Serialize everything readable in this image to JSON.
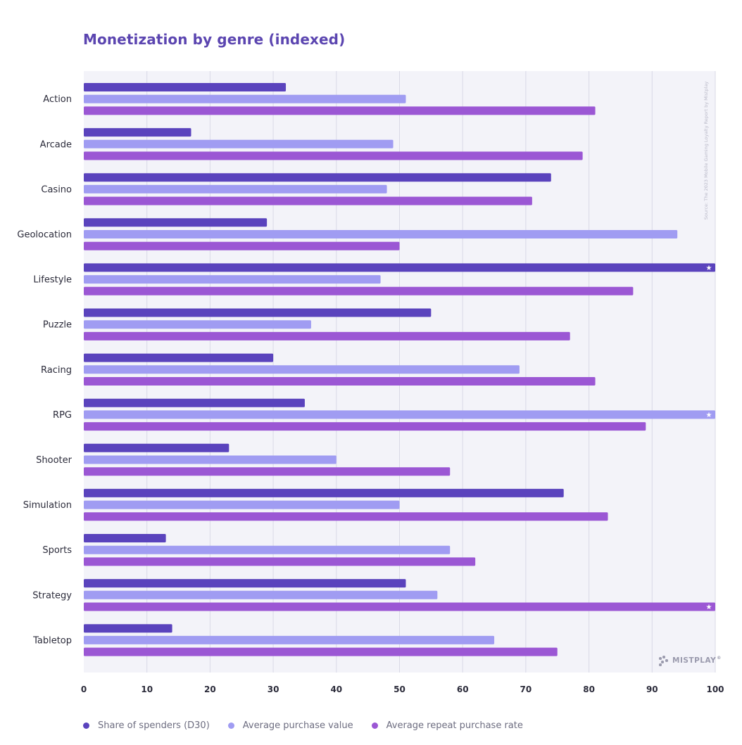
{
  "title": "Monetization by genre (indexed)",
  "source_note": "Source: The 2023 Mobile Gaming Loyalty Report by Mistplay",
  "brand": "MISTPLAY",
  "brand_mark": "®",
  "colors": {
    "share_of_spenders": "#5a43bd",
    "avg_purchase_value": "#a09cf2",
    "avg_repeat_rate": "#9b57d4",
    "plot_bg": "#f3f3f9",
    "grid": "#d9d9e6",
    "title": "#5b45b0"
  },
  "legend": [
    {
      "label": "Share of spenders (D30)",
      "color": "#5a43bd"
    },
    {
      "label": "Average purchase value",
      "color": "#a09cf2"
    },
    {
      "label": "Average repeat purchase rate",
      "color": "#9b57d4"
    }
  ],
  "chart_data": {
    "type": "bar",
    "orientation": "horizontal",
    "title": "Monetization by genre (indexed)",
    "xlabel": "",
    "ylabel": "",
    "xlim": [
      0,
      100
    ],
    "xticks": [
      0,
      10,
      20,
      30,
      40,
      50,
      60,
      70,
      80,
      90,
      100
    ],
    "grid": true,
    "legend_position": "bottom",
    "top_marker": "star",
    "categories": [
      "Action",
      "Arcade",
      "Casino",
      "Geolocation",
      "Lifestyle",
      "Puzzle",
      "Racing",
      "RPG",
      "Shooter",
      "Simulation",
      "Sports",
      "Strategy",
      "Tabletop"
    ],
    "series": [
      {
        "name": "Share of spenders (D30)",
        "values": [
          32,
          17,
          74,
          29,
          100,
          55,
          30,
          35,
          23,
          76,
          13,
          51,
          14
        ]
      },
      {
        "name": "Average purchase value",
        "values": [
          51,
          49,
          48,
          94,
          47,
          36,
          69,
          100,
          40,
          50,
          58,
          56,
          65
        ]
      },
      {
        "name": "Average repeat purchase rate",
        "values": [
          81,
          79,
          71,
          50,
          87,
          77,
          81,
          89,
          58,
          83,
          62,
          100,
          75
        ]
      }
    ]
  }
}
